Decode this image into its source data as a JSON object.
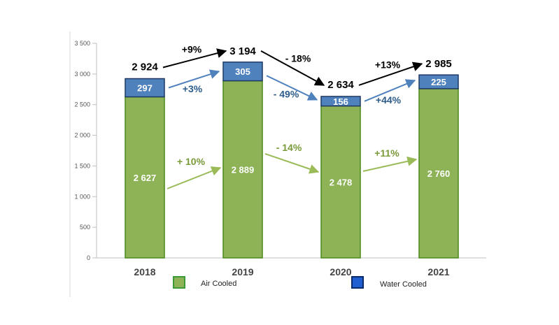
{
  "chart_data": {
    "type": "bar",
    "stacked": true,
    "categories": [
      "2018",
      "2019",
      "2020",
      "2021"
    ],
    "series": [
      {
        "name": "Air Cooled",
        "values": [
          2627,
          2889,
          2478,
          2760
        ],
        "labels": [
          "2 627",
          "2 889",
          "2 478",
          "2 760"
        ],
        "color": "#8db356",
        "border": "#4a8a1a"
      },
      {
        "name": "Water Cooled",
        "values": [
          297,
          305,
          156,
          225
        ],
        "labels": [
          "297",
          "305",
          "156",
          "225"
        ],
        "color": "#4f81bd",
        "border": "#1f3864"
      }
    ],
    "totals": {
      "values": [
        2924,
        3194,
        2634,
        2985
      ],
      "labels": [
        "2 924",
        "3 194",
        "2 634",
        "2 985"
      ]
    },
    "changes": {
      "total": [
        "+9%",
        "- 18%",
        "+13%"
      ],
      "water": [
        "+3%",
        "- 49%",
        "+44%"
      ],
      "air": [
        "+ 10%",
        "- 14%",
        "+11%"
      ]
    },
    "colors": {
      "total": "#000000",
      "water": "#2e5c8a",
      "air": "#7a9a3a",
      "air_arrow": "#9bbb59",
      "water_arrow": "#4f81bd"
    },
    "yticks": [
      0,
      500,
      1000,
      1500,
      2000,
      2500,
      3000,
      3500
    ],
    "ytick_labels": [
      "0",
      "500",
      "1 000",
      "1 500",
      "2 000",
      "2 500",
      "3 000",
      "3 500"
    ],
    "ylim": [
      0,
      3500
    ],
    "grid": false,
    "legend_position": "bottom"
  }
}
